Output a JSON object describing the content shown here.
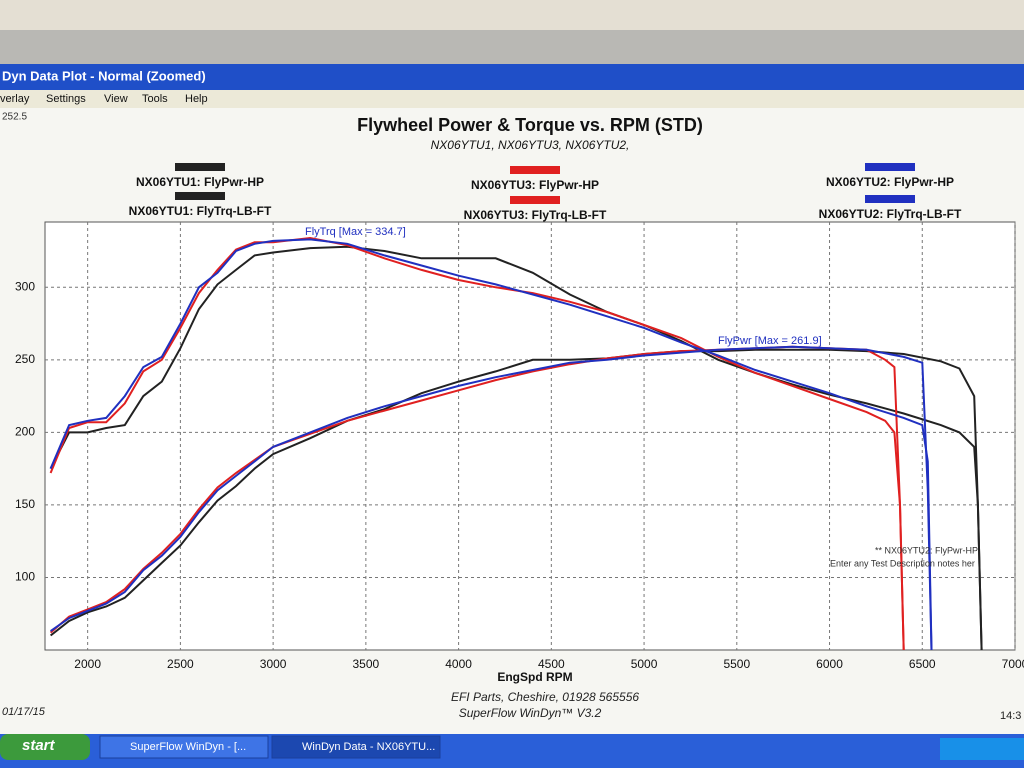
{
  "window": {
    "title": "Dyn Data Plot - Normal   (Zoomed)",
    "menu": [
      "verlay",
      "Settings",
      "View",
      "Tools",
      "Help"
    ],
    "corner_value": "252.5",
    "date": "01/17/15",
    "time": "14:3"
  },
  "taskbar": {
    "start": "start",
    "items": [
      "SuperFlow WinDyn - [...",
      "WinDyn Data - NX06YTU..."
    ]
  },
  "chart_data": {
    "type": "line",
    "title": "Flywheel Power & Torque vs. RPM (STD)",
    "subtitle": "NX06YTU1, NX06YTU3, NX06YTU2,",
    "x_label": "EngSpd RPM",
    "footer": [
      "EFI Parts, Cheshire, 01928 565556",
      "SuperFlow WinDyn™ V3.2"
    ],
    "annotations": [
      "FlyTrq [Max = 334.7]",
      "FlyPwr [Max = 261.9]",
      "** NX06YTU2: FlyPwr-HP",
      "Enter any Test Description notes her"
    ],
    "xlim": [
      1770,
      7000
    ],
    "xticks": [
      2000,
      2500,
      3000,
      3500,
      4000,
      4500,
      5000,
      5500,
      6000,
      6500,
      7000
    ],
    "ylim": [
      50,
      345
    ],
    "yticks": [
      100,
      150,
      200,
      250,
      300
    ],
    "grid": true,
    "series": [
      {
        "name": "NX06YTU1: FlyPwr-HP",
        "color": "#222222",
        "x": [
          1800,
          1900,
          2000,
          2100,
          2200,
          2300,
          2400,
          2500,
          2600,
          2700,
          2800,
          2900,
          3000,
          3200,
          3400,
          3600,
          3800,
          4000,
          4200,
          4400,
          4600,
          4800,
          5000,
          5200,
          5400,
          5600,
          5800,
          6000,
          6200,
          6400,
          6600,
          6700,
          6780,
          6800,
          6820
        ],
        "values": [
          60,
          70,
          76,
          80,
          86,
          98,
          110,
          122,
          138,
          153,
          163,
          175,
          185,
          196,
          208,
          216,
          227,
          235,
          242,
          250,
          250,
          251,
          254,
          256,
          256,
          257,
          257,
          257,
          256,
          254,
          249,
          244,
          225,
          150,
          50
        ]
      },
      {
        "name": "NX06YTU1: FlyTrq-LB-FT",
        "color": "#222222",
        "x": [
          1800,
          1900,
          2000,
          2100,
          2200,
          2300,
          2400,
          2500,
          2600,
          2700,
          2800,
          2900,
          3000,
          3200,
          3400,
          3600,
          3800,
          4000,
          4200,
          4400,
          4600,
          4800,
          5000,
          5200,
          5400,
          5600,
          5800,
          6000,
          6200,
          6400,
          6600,
          6700,
          6780,
          6800,
          6820
        ],
        "values": [
          175,
          200,
          200,
          203,
          205,
          225,
          235,
          258,
          285,
          302,
          312,
          322,
          324,
          327,
          328,
          325,
          320,
          320,
          320,
          310,
          295,
          283,
          274,
          263,
          250,
          241,
          233,
          226,
          220,
          213,
          205,
          200,
          190,
          150,
          50
        ]
      },
      {
        "name": "NX06YTU3: FlyPwr-HP",
        "color": "#e02020",
        "x": [
          1800,
          1900,
          2000,
          2100,
          2200,
          2300,
          2400,
          2500,
          2600,
          2700,
          2800,
          2900,
          3000,
          3200,
          3400,
          3600,
          3800,
          4000,
          4200,
          4400,
          4600,
          4800,
          5000,
          5200,
          5400,
          5600,
          5800,
          6000,
          6200,
          6300,
          6350,
          6380,
          6400
        ],
        "values": [
          62,
          73,
          78,
          83,
          92,
          106,
          117,
          130,
          147,
          162,
          172,
          181,
          190,
          199,
          208,
          215,
          222,
          229,
          236,
          242,
          247,
          251,
          254,
          256,
          257,
          258,
          259,
          258,
          257,
          250,
          245,
          150,
          50
        ]
      },
      {
        "name": "NX06YTU3: FlyTrq-LB-FT",
        "color": "#e02020",
        "x": [
          1800,
          1900,
          2000,
          2100,
          2200,
          2300,
          2400,
          2500,
          2600,
          2700,
          2800,
          2900,
          3000,
          3200,
          3400,
          3600,
          3800,
          4000,
          4200,
          4400,
          4600,
          4800,
          5000,
          5200,
          5400,
          5600,
          5800,
          6000,
          6200,
          6300,
          6350,
          6380,
          6400
        ],
        "values": [
          172,
          203,
          207,
          207,
          220,
          242,
          250,
          272,
          296,
          312,
          326,
          331,
          331,
          334,
          329,
          320,
          312,
          305,
          300,
          296,
          290,
          283,
          274,
          265,
          252,
          241,
          232,
          223,
          214,
          208,
          200,
          150,
          50
        ]
      },
      {
        "name": "NX06YTU2: FlyPwr-HP",
        "color": "#2030c0",
        "x": [
          1800,
          1900,
          2000,
          2100,
          2200,
          2300,
          2400,
          2500,
          2600,
          2700,
          2800,
          2900,
          3000,
          3200,
          3400,
          3600,
          3800,
          4000,
          4200,
          4400,
          4600,
          4800,
          5000,
          5200,
          5400,
          5600,
          5800,
          6000,
          6200,
          6400,
          6500,
          6530,
          6550
        ],
        "values": [
          63,
          72,
          77,
          82,
          90,
          105,
          115,
          128,
          145,
          160,
          170,
          180,
          190,
          200,
          210,
          218,
          225,
          232,
          238,
          243,
          248,
          250,
          253,
          255,
          257,
          258,
          259,
          258,
          257,
          252,
          248,
          160,
          50
        ]
      },
      {
        "name": "NX06YTU2: FlyTrq-LB-FT",
        "color": "#2030c0",
        "x": [
          1800,
          1900,
          2000,
          2100,
          2200,
          2300,
          2400,
          2500,
          2600,
          2700,
          2800,
          2900,
          3000,
          3200,
          3400,
          3600,
          3800,
          4000,
          4200,
          4400,
          4600,
          4800,
          5000,
          5200,
          5400,
          5600,
          5800,
          6000,
          6200,
          6400,
          6500,
          6530,
          6550
        ],
        "values": [
          175,
          205,
          208,
          210,
          225,
          245,
          252,
          275,
          300,
          310,
          325,
          330,
          332,
          333,
          330,
          322,
          315,
          308,
          302,
          295,
          288,
          280,
          272,
          262,
          253,
          243,
          235,
          227,
          218,
          210,
          205,
          180,
          50
        ]
      }
    ]
  }
}
